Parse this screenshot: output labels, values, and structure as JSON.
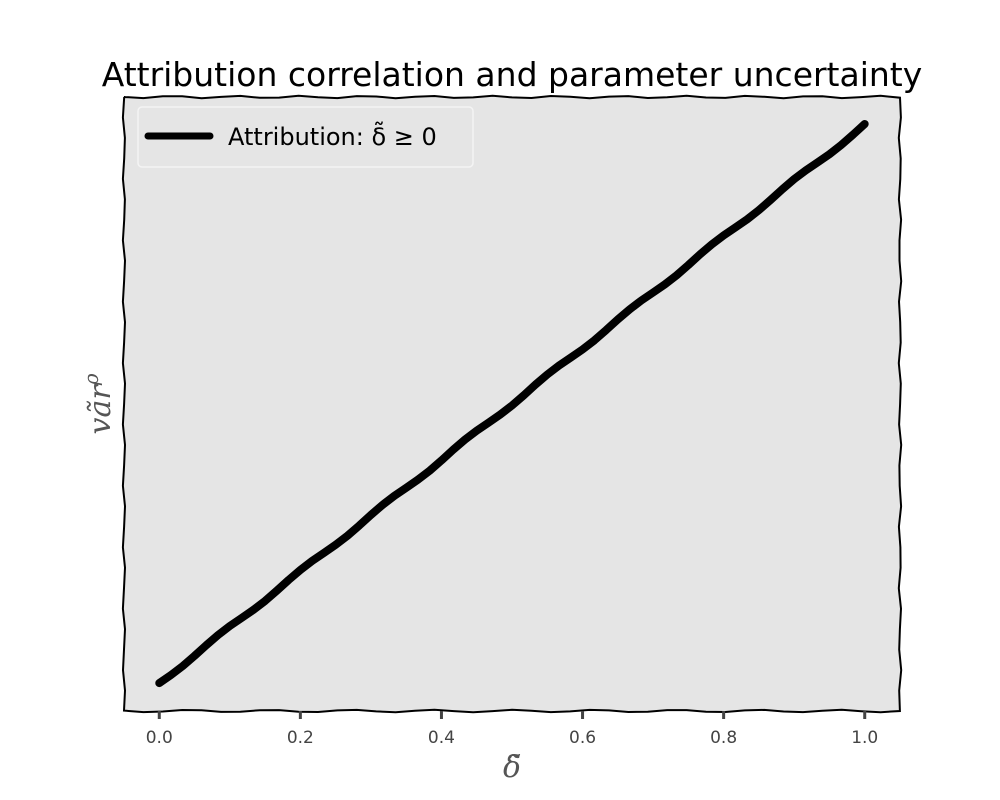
{
  "chart_data": {
    "type": "line",
    "title": "Attribution correlation and parameter uncertainty",
    "xlabel": "δ̃",
    "ylabel": "vãr",
    "ylabel_sup": "ρ",
    "xlim": [
      -0.05,
      1.05
    ],
    "ylim": [
      -0.05,
      1.05
    ],
    "x_ticks": [
      "0.0",
      "0.2",
      "0.4",
      "0.6",
      "0.8",
      "1.0"
    ],
    "x_tick_values": [
      0.0,
      0.2,
      0.4,
      0.6,
      0.8,
      1.0
    ],
    "y_ticks_shown": false,
    "grid": false,
    "legend_position": "upper-left",
    "series": [
      {
        "name": "Attribution: δ̃ ≥ 0",
        "color": "#000000",
        "x": [
          0.0,
          0.1,
          0.2,
          0.3,
          0.4,
          0.5,
          0.6,
          0.7,
          0.8,
          0.9,
          1.0
        ],
        "y": [
          0.0,
          0.1,
          0.2,
          0.3,
          0.4,
          0.5,
          0.6,
          0.7,
          0.8,
          0.9,
          1.0
        ]
      }
    ],
    "colors": {
      "axes_background": "#e5e5e5",
      "frame": "#000000",
      "line": "#000000",
      "tick_text": "#444444",
      "label_text": "#555555"
    }
  }
}
